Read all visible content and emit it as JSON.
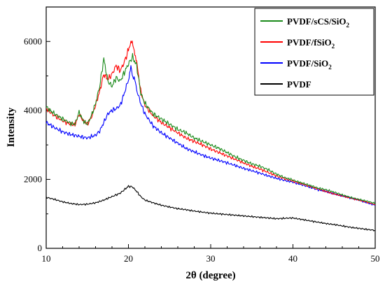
{
  "chart_data": {
    "type": "line",
    "xlabel": "2θ (degree)",
    "ylabel": "Intensity",
    "xlim": [
      10,
      50
    ],
    "ylim": [
      0,
      7000
    ],
    "xticks": [
      10,
      20,
      30,
      40,
      50
    ],
    "yticks": [
      0,
      2000,
      4000,
      6000
    ],
    "grid": false,
    "legend_position": "top-right",
    "series": [
      {
        "name": "PVDF/sCS/SiO",
        "name_sub": "2",
        "color": "#1a8a1a",
        "points": [
          [
            10,
            4100
          ],
          [
            11,
            3900
          ],
          [
            12,
            3750
          ],
          [
            13,
            3620
          ],
          [
            13.5,
            3600
          ],
          [
            14,
            3950
          ],
          [
            14.5,
            3700
          ],
          [
            15,
            3600
          ],
          [
            15.5,
            3850
          ],
          [
            16,
            4200
          ],
          [
            16.5,
            4700
          ],
          [
            17,
            5500
          ],
          [
            17.5,
            4850
          ],
          [
            18,
            4700
          ],
          [
            18.5,
            4950
          ],
          [
            19,
            4850
          ],
          [
            19.5,
            5100
          ],
          [
            20,
            5350
          ],
          [
            20.5,
            5550
          ],
          [
            21,
            5300
          ],
          [
            21.5,
            4500
          ],
          [
            22,
            4200
          ],
          [
            23,
            3900
          ],
          [
            24,
            3750
          ],
          [
            25,
            3600
          ],
          [
            26,
            3450
          ],
          [
            27,
            3350
          ],
          [
            28,
            3200
          ],
          [
            29,
            3100
          ],
          [
            30,
            3000
          ],
          [
            31,
            2900
          ],
          [
            32,
            2780
          ],
          [
            33,
            2650
          ],
          [
            34,
            2550
          ],
          [
            35,
            2450
          ],
          [
            36,
            2380
          ],
          [
            37,
            2280
          ],
          [
            38,
            2150
          ],
          [
            39,
            2050
          ],
          [
            40,
            1980
          ],
          [
            41,
            1900
          ],
          [
            42,
            1830
          ],
          [
            43,
            1750
          ],
          [
            44,
            1700
          ],
          [
            45,
            1630
          ],
          [
            46,
            1550
          ],
          [
            47,
            1480
          ],
          [
            48,
            1420
          ],
          [
            49,
            1370
          ],
          [
            50,
            1300
          ]
        ]
      },
      {
        "name": "PVDF/fSiO",
        "name_sub": "2",
        "color": "#ff0000",
        "points": [
          [
            10,
            4050
          ],
          [
            11,
            3850
          ],
          [
            12,
            3700
          ],
          [
            13,
            3600
          ],
          [
            13.5,
            3580
          ],
          [
            14,
            3900
          ],
          [
            14.5,
            3700
          ],
          [
            15,
            3600
          ],
          [
            15.5,
            3800
          ],
          [
            16,
            4150
          ],
          [
            16.5,
            4550
          ],
          [
            17,
            5050
          ],
          [
            17.5,
            4900
          ],
          [
            18,
            5050
          ],
          [
            18.5,
            5300
          ],
          [
            19,
            5150
          ],
          [
            19.5,
            5400
          ],
          [
            20,
            5750
          ],
          [
            20.3,
            6050
          ],
          [
            20.7,
            5750
          ],
          [
            21,
            5400
          ],
          [
            21.5,
            4550
          ],
          [
            22,
            4150
          ],
          [
            23,
            3850
          ],
          [
            24,
            3650
          ],
          [
            25,
            3500
          ],
          [
            26,
            3350
          ],
          [
            27,
            3200
          ],
          [
            28,
            3100
          ],
          [
            29,
            3000
          ],
          [
            30,
            2880
          ],
          [
            31,
            2780
          ],
          [
            32,
            2680
          ],
          [
            33,
            2580
          ],
          [
            34,
            2480
          ],
          [
            35,
            2380
          ],
          [
            36,
            2300
          ],
          [
            37,
            2200
          ],
          [
            38,
            2100
          ],
          [
            39,
            2020
          ],
          [
            40,
            1950
          ],
          [
            41,
            1880
          ],
          [
            42,
            1800
          ],
          [
            43,
            1730
          ],
          [
            44,
            1650
          ],
          [
            45,
            1580
          ],
          [
            46,
            1520
          ],
          [
            47,
            1460
          ],
          [
            48,
            1400
          ],
          [
            49,
            1340
          ],
          [
            50,
            1270
          ]
        ]
      },
      {
        "name": "PVDF/SiO",
        "name_sub": "2",
        "color": "#0000ff",
        "points": [
          [
            10,
            3650
          ],
          [
            11,
            3500
          ],
          [
            12,
            3380
          ],
          [
            13,
            3300
          ],
          [
            14,
            3250
          ],
          [
            15,
            3200
          ],
          [
            16,
            3280
          ],
          [
            16.5,
            3400
          ],
          [
            17,
            3650
          ],
          [
            17.5,
            3900
          ],
          [
            18,
            4000
          ],
          [
            18.5,
            4050
          ],
          [
            19,
            4150
          ],
          [
            19.5,
            4500
          ],
          [
            20,
            4900
          ],
          [
            20.3,
            5200
          ],
          [
            20.7,
            4900
          ],
          [
            21,
            4600
          ],
          [
            21.5,
            4200
          ],
          [
            22,
            3900
          ],
          [
            23,
            3550
          ],
          [
            24,
            3350
          ],
          [
            25,
            3200
          ],
          [
            26,
            3050
          ],
          [
            27,
            2900
          ],
          [
            28,
            2800
          ],
          [
            29,
            2700
          ],
          [
            30,
            2620
          ],
          [
            31,
            2550
          ],
          [
            32,
            2480
          ],
          [
            33,
            2400
          ],
          [
            34,
            2320
          ],
          [
            35,
            2250
          ],
          [
            36,
            2180
          ],
          [
            37,
            2100
          ],
          [
            38,
            2030
          ],
          [
            39,
            1970
          ],
          [
            40,
            1920
          ],
          [
            41,
            1850
          ],
          [
            42,
            1780
          ],
          [
            43,
            1700
          ],
          [
            44,
            1650
          ],
          [
            45,
            1580
          ],
          [
            46,
            1520
          ],
          [
            47,
            1460
          ],
          [
            48,
            1400
          ],
          [
            49,
            1320
          ],
          [
            50,
            1250
          ]
        ]
      },
      {
        "name": "PVDF",
        "color": "#000000",
        "points": [
          [
            10,
            1480
          ],
          [
            11,
            1420
          ],
          [
            12,
            1350
          ],
          [
            13,
            1300
          ],
          [
            14,
            1270
          ],
          [
            15,
            1280
          ],
          [
            16,
            1320
          ],
          [
            17,
            1400
          ],
          [
            18,
            1500
          ],
          [
            19,
            1600
          ],
          [
            19.5,
            1700
          ],
          [
            20,
            1800
          ],
          [
            20.5,
            1780
          ],
          [
            21,
            1650
          ],
          [
            21.5,
            1500
          ],
          [
            22,
            1400
          ],
          [
            23,
            1320
          ],
          [
            24,
            1250
          ],
          [
            25,
            1200
          ],
          [
            26,
            1150
          ],
          [
            27,
            1120
          ],
          [
            28,
            1080
          ],
          [
            29,
            1050
          ],
          [
            30,
            1020
          ],
          [
            31,
            1000
          ],
          [
            32,
            980
          ],
          [
            33,
            960
          ],
          [
            34,
            940
          ],
          [
            35,
            920
          ],
          [
            36,
            900
          ],
          [
            37,
            880
          ],
          [
            38,
            860
          ],
          [
            39,
            870
          ],
          [
            40,
            880
          ],
          [
            41,
            840
          ],
          [
            42,
            800
          ],
          [
            43,
            760
          ],
          [
            44,
            720
          ],
          [
            45,
            690
          ],
          [
            46,
            650
          ],
          [
            47,
            610
          ],
          [
            48,
            580
          ],
          [
            49,
            550
          ],
          [
            50,
            520
          ]
        ]
      }
    ]
  }
}
